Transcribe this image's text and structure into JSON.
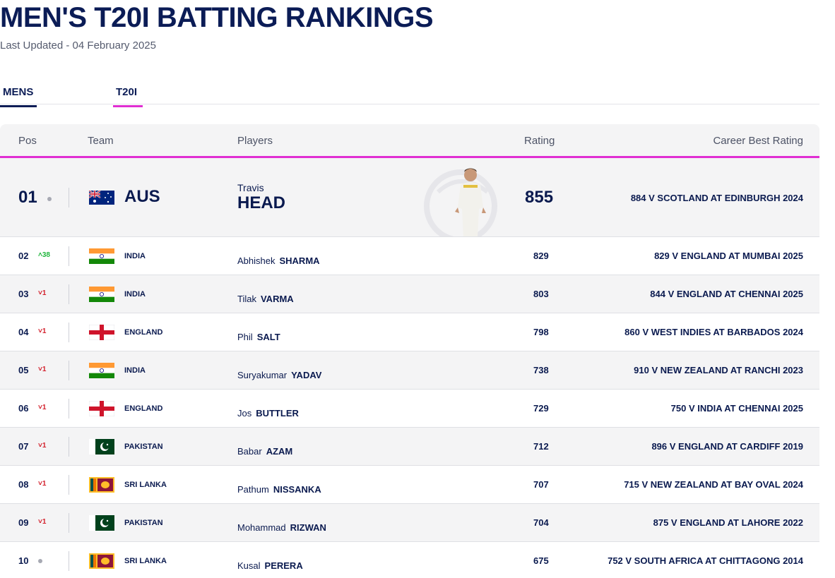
{
  "page": {
    "title": "MEN'S T20I BATTING RANKINGS",
    "updated": "Last Updated - 04 February 2025"
  },
  "tabs": [
    {
      "label": "MENS",
      "active_color": "#0b1c56"
    },
    {
      "label": "T20I",
      "active_color": "#e02ed2"
    }
  ],
  "table": {
    "headers": {
      "pos": "Pos",
      "team": "Team",
      "players": "Players",
      "rating": "Rating",
      "best": "Career Best Rating"
    },
    "top": {
      "pos": "01",
      "movement": "none",
      "team": "AUS",
      "flag": "australia-flag",
      "first_name": "Travis",
      "last_name": "HEAD",
      "rating": "855",
      "best": "884 V SCOTLAND AT EDINBURGH 2024"
    },
    "rows": [
      {
        "pos": "02",
        "dir": "up",
        "move": "^38",
        "team": "INDIA",
        "flag": "india-flag",
        "first": "Abhishek",
        "last": "SHARMA",
        "rating": "829",
        "best": "829 V ENGLAND AT MUMBAI 2025"
      },
      {
        "pos": "03",
        "dir": "down",
        "move": "v1",
        "team": "INDIA",
        "flag": "india-flag",
        "first": "Tilak",
        "last": "VARMA",
        "rating": "803",
        "best": "844 V ENGLAND AT CHENNAI 2025"
      },
      {
        "pos": "04",
        "dir": "down",
        "move": "v1",
        "team": "ENGLAND",
        "flag": "england-flag",
        "first": "Phil",
        "last": "SALT",
        "rating": "798",
        "best": "860 V WEST INDIES AT BARBADOS 2024"
      },
      {
        "pos": "05",
        "dir": "down",
        "move": "v1",
        "team": "INDIA",
        "flag": "india-flag",
        "first": "Suryakumar",
        "last": "YADAV",
        "rating": "738",
        "best": "910 V NEW ZEALAND AT RANCHI 2023"
      },
      {
        "pos": "06",
        "dir": "down",
        "move": "v1",
        "team": "ENGLAND",
        "flag": "england-flag",
        "first": "Jos",
        "last": "BUTTLER",
        "rating": "729",
        "best": "750 V INDIA AT CHENNAI 2025"
      },
      {
        "pos": "07",
        "dir": "down",
        "move": "v1",
        "team": "PAKISTAN",
        "flag": "pakistan-flag",
        "first": "Babar",
        "last": "AZAM",
        "rating": "712",
        "best": "896 V ENGLAND AT CARDIFF 2019"
      },
      {
        "pos": "08",
        "dir": "down",
        "move": "v1",
        "team": "SRI LANKA",
        "flag": "sri-lanka-flag",
        "first": "Pathum",
        "last": "NISSANKA",
        "rating": "707",
        "best": "715 V NEW ZEALAND AT BAY OVAL 2024"
      },
      {
        "pos": "09",
        "dir": "down",
        "move": "v1",
        "team": "PAKISTAN",
        "flag": "pakistan-flag",
        "first": "Mohammad",
        "last": "RIZWAN",
        "rating": "704",
        "best": "875 V ENGLAND AT LAHORE 2022"
      },
      {
        "pos": "10",
        "dir": "none",
        "move": "",
        "team": "SRI LANKA",
        "flag": "sri-lanka-flag",
        "first": "Kusal",
        "last": "PERERA",
        "rating": "675",
        "best": "752 V SOUTH AFRICA AT CHITTAGONG 2014"
      }
    ]
  },
  "colors": {
    "navy": "#0b1c56",
    "accent": "#e02ed2",
    "up": "#1fb53c",
    "down": "#d3202c",
    "row_alt": "#f4f4f5"
  }
}
